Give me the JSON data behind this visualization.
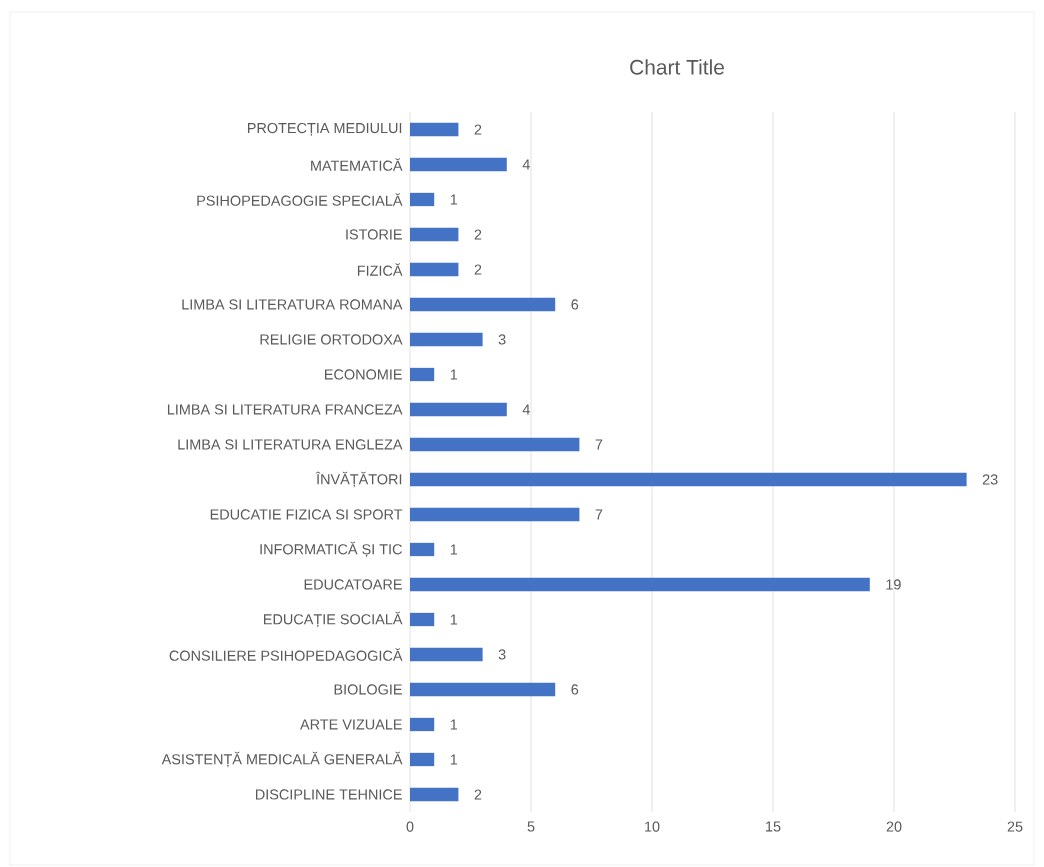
{
  "chart_data": {
    "type": "bar",
    "orientation": "horizontal",
    "title": "Chart Title",
    "categories": [
      "PROTECȚIA MEDIULUI",
      "MATEMATICĂ",
      "PSIHOPEDAGOGIE SPECIALĂ",
      "ISTORIE",
      "FIZICĂ",
      "LIMBA SI LITERATURA ROMANA",
      "RELIGIE ORTODOXA",
      "ECONOMIE",
      "LIMBA SI LITERATURA FRANCEZA",
      "LIMBA SI LITERATURA ENGLEZA",
      "ÎNVĂȚĂTORI",
      "EDUCATIE FIZICA SI SPORT",
      "INFORMATICĂ ȘI TIC",
      "EDUCATOARE",
      "EDUCAȚIE SOCIALĂ",
      "CONSILIERE PSIHOPEDAGOGICĂ",
      "BIOLOGIE",
      "ARTE VIZUALE",
      "ASISTENȚĂ MEDICALĂ GENERALĂ",
      "DISCIPLINE TEHNICE"
    ],
    "values": [
      2,
      4,
      1,
      2,
      2,
      6,
      3,
      1,
      4,
      7,
      23,
      7,
      1,
      19,
      1,
      3,
      6,
      1,
      1,
      2
    ],
    "color": "#4472c4",
    "xlim": [
      0,
      25
    ],
    "xticks": [
      0,
      5,
      10,
      15,
      20,
      25
    ],
    "grid": "x",
    "data_labels": true
  }
}
